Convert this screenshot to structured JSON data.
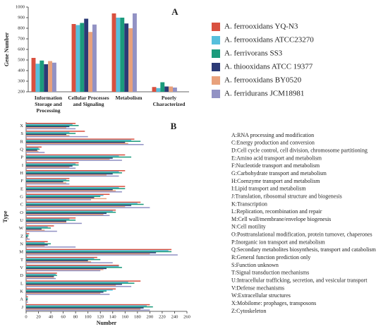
{
  "chart_data": [
    {
      "type": "bar",
      "panel": "A",
      "y_label": "Gene Number",
      "categories": [
        "Information Storage and Processing",
        "Cellular Processes and Signaling",
        "Metabolism",
        "Poorly Characterized"
      ],
      "series": [
        {
          "name": "A. ferrooxidans YQ-N3",
          "color": "#d9503f",
          "values": [
            520,
            840,
            940,
            245
          ]
        },
        {
          "name": "A. ferrooxidans ATCC23270",
          "color": "#56bfdc",
          "values": [
            465,
            830,
            900,
            235
          ]
        },
        {
          "name": "A. ferrivorans SS3",
          "color": "#1b9b7c",
          "values": [
            495,
            850,
            900,
            290
          ]
        },
        {
          "name": "A. thiooxidans ATCC 19377",
          "color": "#2b3a76",
          "values": [
            460,
            890,
            845,
            250
          ]
        },
        {
          "name": "A. ferrooxidans BY0520",
          "color": "#e8a17c",
          "values": [
            490,
            765,
            800,
            250
          ]
        },
        {
          "name": "A. ferridurans JCM18981",
          "color": "#9292c4",
          "values": [
            475,
            835,
            940,
            240
          ]
        }
      ],
      "ylim": [
        200,
        1000
      ],
      "yticks": [
        200,
        300,
        400,
        500,
        600,
        700,
        800,
        900,
        1000
      ]
    },
    {
      "type": "barh",
      "panel": "B",
      "x_label": "Number",
      "y_label": "Type",
      "categories": [
        "X",
        "S",
        "R",
        "Q",
        "P",
        "I",
        "H",
        "F",
        "E",
        "G",
        "C",
        "O",
        "U",
        "W",
        "Z",
        "N",
        "M",
        "T",
        "V",
        "D",
        "L",
        "K",
        "A",
        "J"
      ],
      "series": [
        {
          "name": "A. ferrooxidans YQ-N3",
          "color": "#d9503f",
          "values": [
            80,
            95,
            175,
            25,
            160,
            85,
            160,
            70,
            160,
            135,
            185,
            145,
            80,
            45,
            5,
            35,
            235,
            115,
            150,
            50,
            185,
            145,
            3,
            200
          ]
        },
        {
          "name": "A. ferrooxidans ATCC23270",
          "color": "#56bfdc",
          "values": [
            75,
            70,
            170,
            20,
            150,
            80,
            150,
            65,
            150,
            125,
            180,
            140,
            70,
            35,
            3,
            30,
            230,
            110,
            150,
            48,
            165,
            140,
            2,
            195
          ]
        },
        {
          "name": "A. ferrivorans SS3",
          "color": "#1b9b7c",
          "values": [
            85,
            80,
            185,
            22,
            170,
            85,
            155,
            70,
            160,
            120,
            190,
            145,
            80,
            40,
            4,
            40,
            235,
            120,
            155,
            50,
            175,
            130,
            3,
            205
          ]
        },
        {
          "name": "A. thiooxidans ATCC 19377",
          "color": "#2b3a76",
          "values": [
            70,
            65,
            160,
            18,
            140,
            75,
            140,
            60,
            140,
            110,
            170,
            130,
            65,
            25,
            2,
            35,
            210,
            100,
            130,
            45,
            155,
            125,
            2,
            190
          ]
        },
        {
          "name": "A. ferrooxidans BY0520",
          "color": "#e8a17c",
          "values": [
            65,
            70,
            165,
            20,
            135,
            70,
            130,
            65,
            145,
            130,
            160,
            125,
            65,
            30,
            3,
            30,
            200,
            105,
            125,
            45,
            145,
            120,
            2,
            185
          ]
        },
        {
          "name": "A. ferridurans JCM18981",
          "color": "#9292c4",
          "values": [
            80,
            100,
            190,
            30,
            155,
            80,
            150,
            70,
            155,
            105,
            200,
            135,
            90,
            50,
            6,
            80,
            245,
            140,
            120,
            48,
            170,
            135,
            3,
            200
          ]
        }
      ],
      "xlim": [
        0,
        260
      ],
      "xticks": [
        0,
        20,
        40,
        60,
        80,
        100,
        120,
        140,
        160,
        180,
        200,
        220,
        240,
        260
      ],
      "code_definitions": [
        "A:RNA processing and modification",
        "C:Energy production and conversion",
        "D:Cell cycle control, cell division, chromosome partitioning",
        "E:Amino acid transport and metabolism",
        "F:Nucleotide transport and metabolism",
        "G:Carbohydrate transport and metabolism",
        "H:Coenzyme transport and metabolism",
        "I:Lipid transport and metabolism",
        "J:Translation, ribosomal structure and biogenesis",
        "K:Transcription",
        "L:Replication, recombination and repair",
        "M:Cell wall/membrane/envelope biogenesis",
        "N:Cell motility",
        "O:Posttranslational modification, protein turnover, chaperones",
        "P:Inorganic ion transport and metabolism",
        "Q:Secondary metabolites biosynthesis, transport and catabolism",
        "R:General function prediction only",
        "S:Function unknown",
        "T:Signal transduction mechanisms",
        "U:Intracellular trafficking, secretion, and vesicular transport",
        "V:Defense mechanisms",
        "W:Extracellular structures",
        "X:Mobilome: prophages, transposons",
        "Z:Cytoskeleton"
      ]
    }
  ]
}
